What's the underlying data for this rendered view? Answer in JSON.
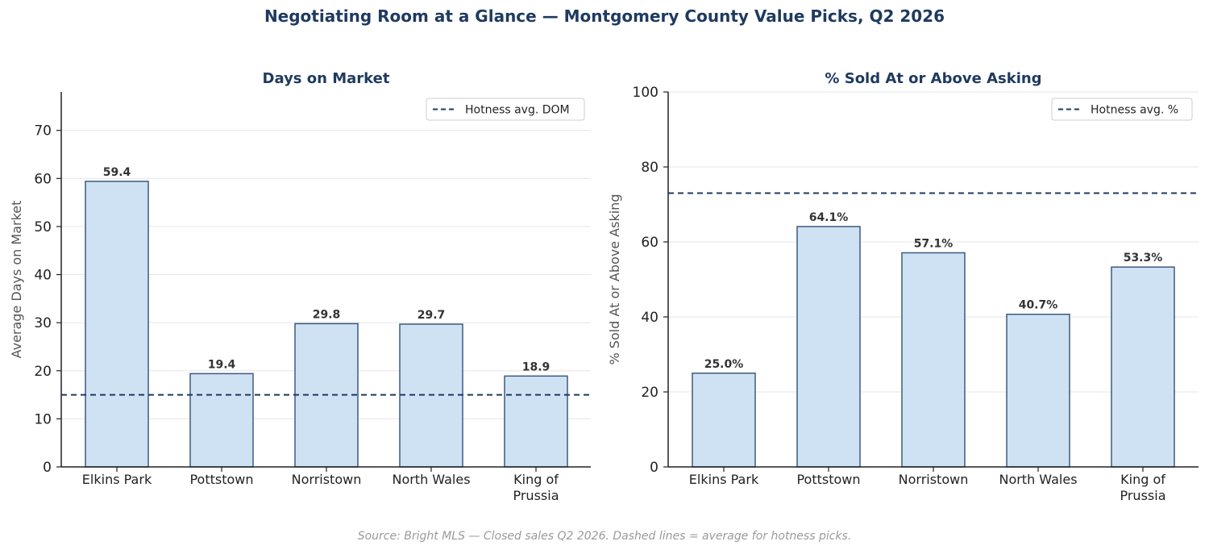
{
  "figure": {
    "title": "Negotiating Room at a Glance — Montgomery County Value Picks, Q2 2026",
    "source": "Source: Bright MLS — Closed sales Q2 2026. Dashed lines = average for hotness picks."
  },
  "colors": {
    "bar_fill": "#cfe2f3",
    "bar_edge": "#3d5a80",
    "ref_line": "#1f3a5f",
    "title": "#1f3a5f"
  },
  "chart_data": [
    {
      "type": "bar",
      "title": "Days on Market",
      "xlabel": "",
      "ylabel": "Average Days on Market",
      "categories": [
        [
          "Elkins Park"
        ],
        [
          "Pottstown"
        ],
        [
          "Norristown"
        ],
        [
          "North Wales"
        ],
        [
          "King of",
          "Prussia"
        ]
      ],
      "values": [
        59.4,
        19.4,
        29.8,
        29.7,
        18.9
      ],
      "data_labels": [
        "59.4",
        "19.4",
        "29.8",
        "29.7",
        "18.9"
      ],
      "ylim": [
        0,
        78
      ],
      "yticks": [
        0,
        10,
        20,
        30,
        40,
        50,
        60,
        70
      ],
      "reference_line": {
        "label": "Hotness avg. DOM",
        "value": 15,
        "style": "dashed"
      },
      "legend": "top-right",
      "grid": "y"
    },
    {
      "type": "bar",
      "title": "% Sold At or Above Asking",
      "xlabel": "",
      "ylabel": "% Sold At or Above Asking",
      "categories": [
        [
          "Elkins Park"
        ],
        [
          "Pottstown"
        ],
        [
          "Norristown"
        ],
        [
          "North Wales"
        ],
        [
          "King of",
          "Prussia"
        ]
      ],
      "values": [
        25.0,
        64.1,
        57.1,
        40.7,
        53.3
      ],
      "data_labels": [
        "25.0%",
        "64.1%",
        "57.1%",
        "40.7%",
        "53.3%"
      ],
      "ylim": [
        0,
        100
      ],
      "yticks": [
        0,
        20,
        40,
        60,
        80,
        100
      ],
      "reference_line": {
        "label": "Hotness avg. %",
        "value": 73,
        "style": "dashed"
      },
      "legend": "top-right",
      "grid": "y"
    }
  ]
}
